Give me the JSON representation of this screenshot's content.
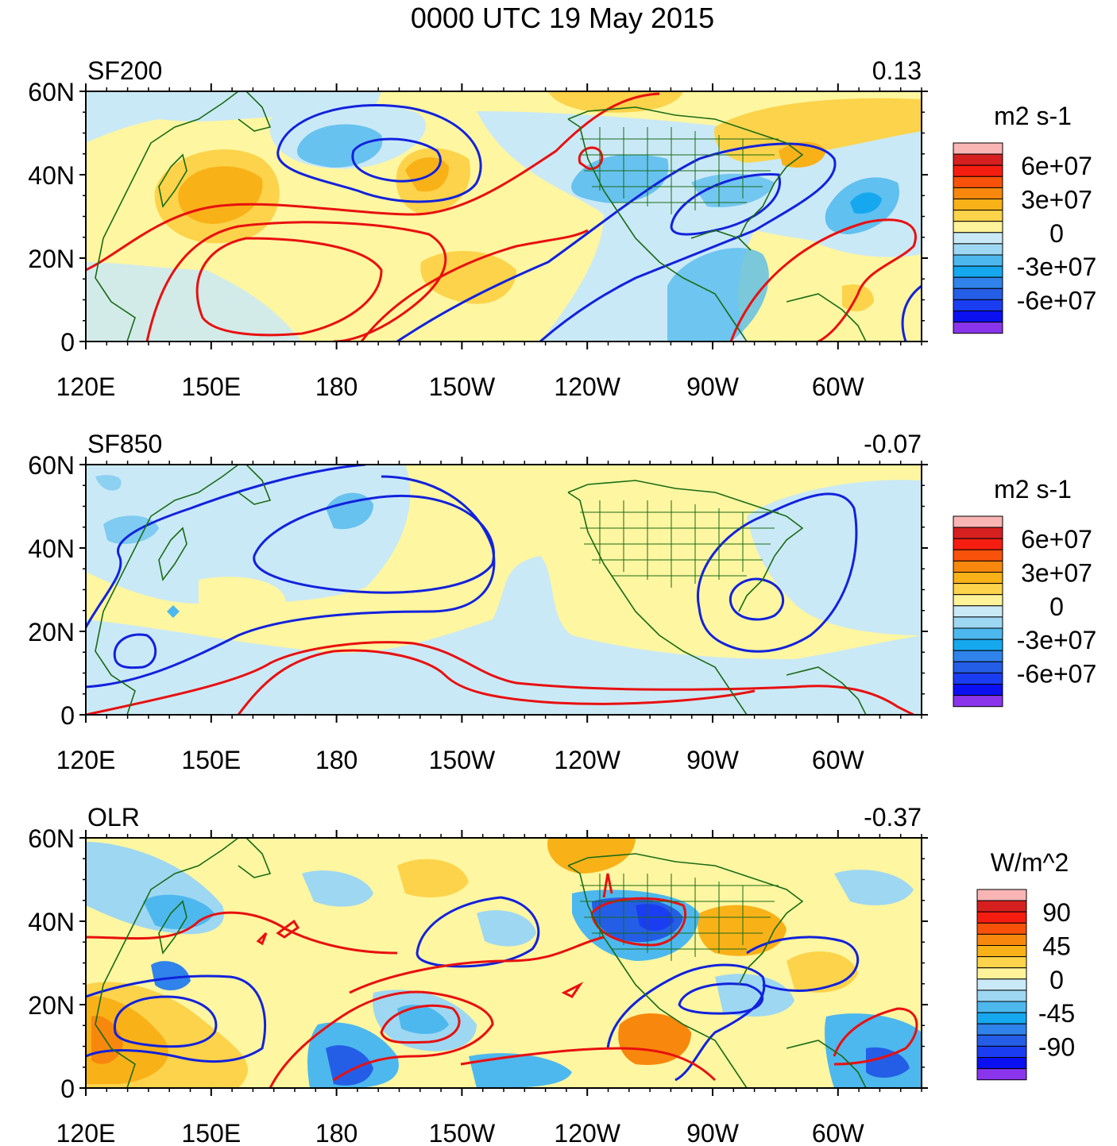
{
  "title": "0000 UTC 19 May 2015",
  "lat_labels": [
    "60N",
    "40N",
    "20N",
    "0"
  ],
  "lon_labels": [
    "120E",
    "150E",
    "180",
    "150W",
    "120W",
    "90W",
    "60W"
  ],
  "panels": [
    {
      "name": "SF200",
      "value": "0.13",
      "units": "m2 s-1",
      "colorbar_labels": [
        "6e+07",
        "3e+07",
        "0",
        "-3e+07",
        "-6e+07"
      ]
    },
    {
      "name": "SF850",
      "value": "-0.07",
      "units": "m2 s-1",
      "colorbar_labels": [
        "6e+07",
        "3e+07",
        "0",
        "-3e+07",
        "-6e+07"
      ]
    },
    {
      "name": "OLR",
      "value": "-0.37",
      "units": "W/m^2",
      "colorbar_labels": [
        "90",
        "45",
        "0",
        "-45",
        "-90"
      ]
    }
  ],
  "colorbar_colors": [
    "#f9b4b4",
    "#d62020",
    "#f51d10",
    "#f8520a",
    "#f7880d",
    "#f9b118",
    "#fcd34a",
    "#fff39a",
    "#cae9f6",
    "#9ed7f2",
    "#4db8ee",
    "#16a8ef",
    "#2f83ea",
    "#245ee6",
    "#1a3df2",
    "#0a10f0",
    "#8a35eb"
  ],
  "map_colors": {
    "ocean_base": "#fef6a0",
    "land_line": "#1a6b16",
    "pos_contour": "#e81010",
    "neg_contour": "#1222dd"
  }
}
